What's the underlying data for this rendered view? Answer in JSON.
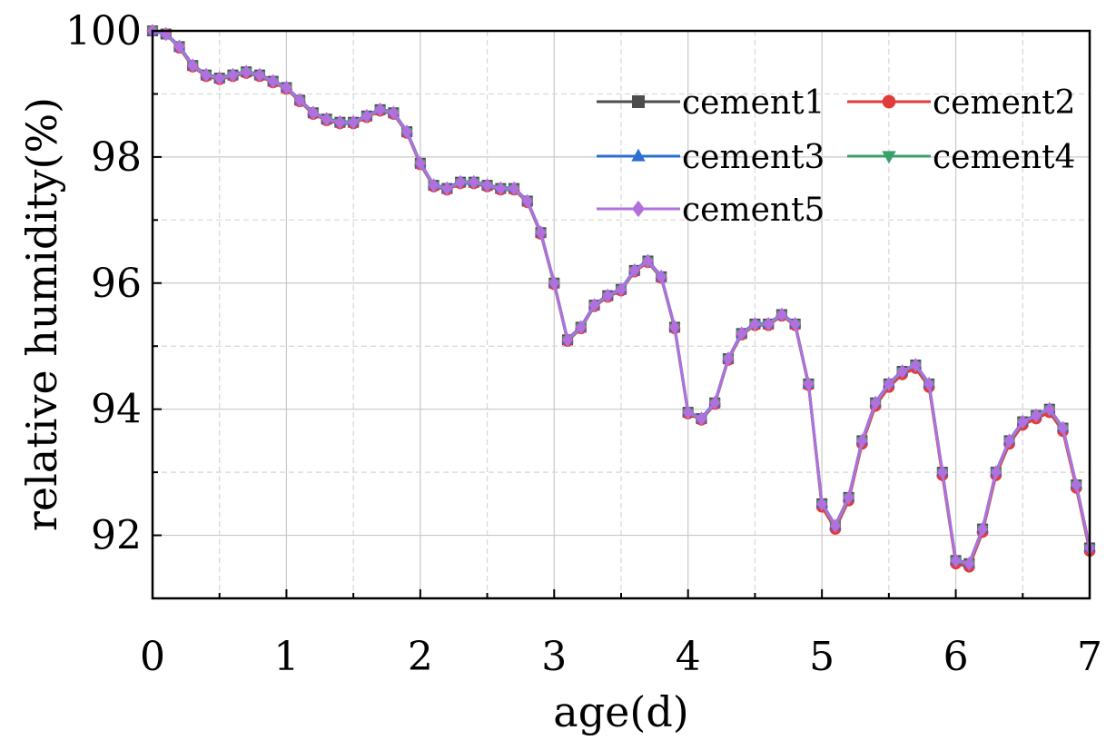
{
  "chart_data": {
    "type": "line",
    "title": "",
    "xlabel": "age(d)",
    "ylabel": "relative humidity(%)",
    "xlim": [
      0,
      7
    ],
    "ylim": [
      91,
      100
    ],
    "x_ticks": [
      0,
      1,
      2,
      3,
      4,
      5,
      6,
      7
    ],
    "x_tick_labels": [
      "0",
      "1",
      "2",
      "3",
      "4",
      "5",
      "6",
      "7"
    ],
    "y_ticks": [
      92,
      94,
      96,
      98,
      100
    ],
    "y_tick_labels": [
      "92",
      "94",
      "96",
      "98",
      "100"
    ],
    "grid": true,
    "legend_position": "top-right",
    "x": [
      0.0,
      0.1,
      0.2,
      0.3,
      0.4,
      0.5,
      0.6,
      0.7,
      0.8,
      0.9,
      1.0,
      1.1,
      1.2,
      1.3,
      1.4,
      1.5,
      1.6,
      1.7,
      1.8,
      1.9,
      2.0,
      2.1,
      2.2,
      2.3,
      2.4,
      2.5,
      2.6,
      2.7,
      2.8,
      2.9,
      3.0,
      3.1,
      3.2,
      3.3,
      3.4,
      3.5,
      3.6,
      3.7,
      3.8,
      3.9,
      4.0,
      4.1,
      4.2,
      4.3,
      4.4,
      4.5,
      4.6,
      4.7,
      4.8,
      4.9,
      5.0,
      5.1,
      5.2,
      5.3,
      5.4,
      5.5,
      5.6,
      5.7,
      5.8,
      5.9,
      6.0,
      6.1,
      6.2,
      6.3,
      6.4,
      6.5,
      6.6,
      6.7,
      6.8,
      6.9,
      7.0
    ],
    "series": [
      {
        "name": "cement1",
        "color": "#4d4d4d",
        "marker": "square",
        "values": [
          100.0,
          99.95,
          99.75,
          99.45,
          99.3,
          99.25,
          99.3,
          99.35,
          99.3,
          99.2,
          99.1,
          98.9,
          98.7,
          98.6,
          98.55,
          98.55,
          98.65,
          98.75,
          98.7,
          98.4,
          97.9,
          97.55,
          97.5,
          97.6,
          97.6,
          97.55,
          97.5,
          97.5,
          97.3,
          96.8,
          96.0,
          95.1,
          95.3,
          95.65,
          95.8,
          95.9,
          96.2,
          96.35,
          96.1,
          95.3,
          93.95,
          93.85,
          94.1,
          94.8,
          95.2,
          95.35,
          95.35,
          95.5,
          95.35,
          94.4,
          92.5,
          92.15,
          92.6,
          93.5,
          94.1,
          94.4,
          94.6,
          94.7,
          94.4,
          93.0,
          91.6,
          91.55,
          92.1,
          93.0,
          93.5,
          93.8,
          93.9,
          94.0,
          93.7,
          92.8,
          91.8
        ]
      },
      {
        "name": "cement2",
        "color": "#e23b3b",
        "marker": "circle",
        "values": [
          100.0,
          99.95,
          99.73,
          99.43,
          99.28,
          99.23,
          99.28,
          99.33,
          99.28,
          99.18,
          99.08,
          98.88,
          98.68,
          98.58,
          98.53,
          98.53,
          98.63,
          98.73,
          98.68,
          98.38,
          97.88,
          97.53,
          97.48,
          97.58,
          97.58,
          97.53,
          97.48,
          97.48,
          97.28,
          96.78,
          95.98,
          95.08,
          95.28,
          95.63,
          95.78,
          95.88,
          96.18,
          96.33,
          96.08,
          95.28,
          93.93,
          93.83,
          94.08,
          94.78,
          95.18,
          95.33,
          95.33,
          95.48,
          95.33,
          94.38,
          92.45,
          92.1,
          92.55,
          93.45,
          94.05,
          94.35,
          94.55,
          94.65,
          94.35,
          92.95,
          91.55,
          91.5,
          92.05,
          92.95,
          93.45,
          93.75,
          93.85,
          93.95,
          93.65,
          92.75,
          91.75
        ]
      },
      {
        "name": "cement3",
        "color": "#2b6fd1",
        "marker": "triangle-up",
        "values": [
          100.0,
          99.96,
          99.76,
          99.46,
          99.31,
          99.26,
          99.31,
          99.36,
          99.31,
          99.21,
          99.11,
          98.91,
          98.71,
          98.61,
          98.56,
          98.56,
          98.66,
          98.76,
          98.71,
          98.41,
          97.91,
          97.56,
          97.51,
          97.61,
          97.61,
          97.56,
          97.51,
          97.51,
          97.31,
          96.81,
          96.01,
          95.11,
          95.31,
          95.66,
          95.81,
          95.91,
          96.21,
          96.36,
          96.11,
          95.31,
          93.96,
          93.86,
          94.11,
          94.81,
          95.21,
          95.36,
          95.36,
          95.51,
          95.36,
          94.41,
          92.51,
          92.16,
          92.61,
          93.51,
          94.11,
          94.41,
          94.61,
          94.71,
          94.41,
          93.01,
          91.61,
          91.56,
          92.11,
          93.01,
          93.51,
          93.81,
          93.91,
          94.01,
          93.71,
          92.81,
          91.81
        ]
      },
      {
        "name": "cement4",
        "color": "#3aa06a",
        "marker": "triangle-down",
        "values": [
          100.0,
          99.94,
          99.74,
          99.44,
          99.29,
          99.24,
          99.29,
          99.34,
          99.29,
          99.19,
          99.09,
          98.89,
          98.69,
          98.59,
          98.54,
          98.54,
          98.64,
          98.74,
          98.69,
          98.39,
          97.89,
          97.54,
          97.49,
          97.59,
          97.59,
          97.54,
          97.49,
          97.49,
          97.29,
          96.79,
          95.99,
          95.09,
          95.29,
          95.64,
          95.79,
          95.89,
          96.19,
          96.34,
          96.09,
          95.29,
          93.94,
          93.84,
          94.09,
          94.79,
          95.19,
          95.34,
          95.34,
          95.49,
          95.34,
          94.39,
          92.49,
          92.14,
          92.59,
          93.49,
          94.09,
          94.39,
          94.59,
          94.69,
          94.39,
          92.99,
          91.59,
          91.54,
          92.09,
          92.99,
          93.49,
          93.79,
          93.89,
          93.99,
          93.69,
          92.79,
          91.79
        ]
      },
      {
        "name": "cement5",
        "color": "#b070dd",
        "marker": "diamond",
        "values": [
          100.0,
          99.95,
          99.75,
          99.45,
          99.3,
          99.25,
          99.3,
          99.35,
          99.3,
          99.2,
          99.1,
          98.9,
          98.7,
          98.6,
          98.55,
          98.55,
          98.65,
          98.75,
          98.7,
          98.4,
          97.9,
          97.55,
          97.5,
          97.6,
          97.6,
          97.55,
          97.5,
          97.5,
          97.3,
          96.8,
          96.0,
          95.1,
          95.3,
          95.65,
          95.8,
          95.9,
          96.2,
          96.35,
          96.1,
          95.3,
          93.95,
          93.85,
          94.1,
          94.8,
          95.2,
          95.35,
          95.35,
          95.5,
          95.35,
          94.4,
          92.5,
          92.15,
          92.6,
          93.5,
          94.1,
          94.4,
          94.6,
          94.7,
          94.4,
          93.0,
          91.6,
          91.55,
          92.1,
          93.0,
          93.5,
          93.8,
          93.9,
          94.0,
          93.7,
          92.8,
          91.8
        ]
      }
    ]
  }
}
